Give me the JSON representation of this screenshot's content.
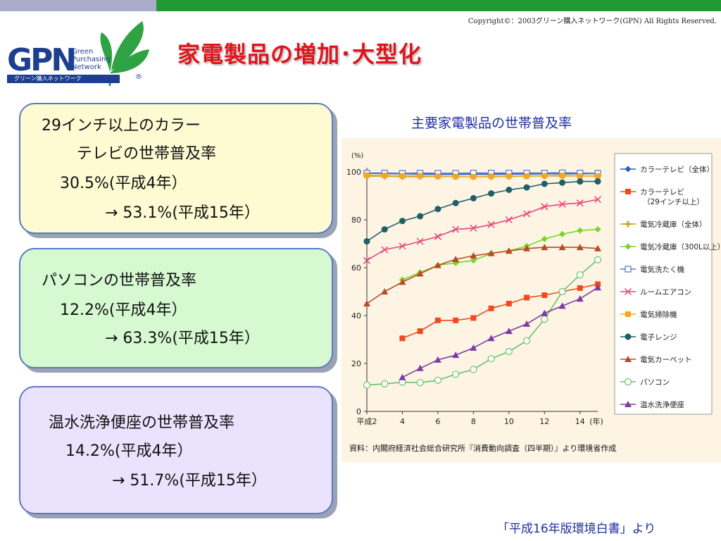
{
  "copyright": "Copyright©：2003グリーン購入ネットワーク(GPN) All Rights Reserved.",
  "logo": {
    "letters": "GPN",
    "line1": "Green",
    "line2": "Purchasing",
    "line3": "Network",
    "tagline": "グリーン購入ネットワーク",
    "registered": "®",
    "leaf_color": "#2fa244",
    "text_color": "#1d3f8f"
  },
  "title": "家電製品の増加･大型化",
  "cards": [
    {
      "lines": [
        "29インチ以上のカラー",
        "テレビの世帯普及率",
        "30.5%(平成4年）",
        "→  53.1%(平成15年）"
      ]
    },
    {
      "lines": [
        "パソコンの世帯普及率",
        "12.2%(平成4年）",
        "→  63.3%(平成15年）"
      ]
    },
    {
      "lines": [
        "温水洗浄便座の世帯普及率",
        "14.2%(平成4年）",
        "→  51.7%(平成15年）"
      ]
    }
  ],
  "chart_title": "主要家電製品の世帯普及率",
  "source": "資料：内閣府経済社会総合研究所『消費動向調査（四半期）』より環境省作成",
  "credit": "「平成16年版環境白書」より",
  "chart_data": {
    "type": "line",
    "ylabel": "(%)",
    "xlabel_unit": "(年)",
    "ylim": [
      0,
      100
    ],
    "yticks": [
      0,
      20,
      40,
      60,
      80,
      100
    ],
    "xlim": [
      2,
      15
    ],
    "xticks": [
      {
        "value": 2,
        "label": "平成2"
      },
      {
        "value": 4,
        "label": "4"
      },
      {
        "value": 6,
        "label": "6"
      },
      {
        "value": 8,
        "label": "8"
      },
      {
        "value": 10,
        "label": "10"
      },
      {
        "value": 12,
        "label": "12"
      },
      {
        "value": 14,
        "label": "14"
      }
    ],
    "legend_position": "right",
    "series": [
      {
        "name": "カラーテレビ（全体）",
        "color": "#2a5fbf",
        "marker": "diamond",
        "x": [
          2,
          3,
          4,
          5,
          6,
          7,
          8,
          9,
          10,
          11,
          12,
          13,
          14,
          15
        ],
        "y": [
          99.4,
          99.3,
          99.2,
          99.1,
          99.0,
          99.0,
          99.0,
          99.0,
          99.1,
          99.1,
          99.2,
          99.2,
          99.2,
          99.3
        ]
      },
      {
        "name": "カラーテレビ（29インチ以上）",
        "color": "#f04a1e",
        "marker": "square",
        "x": [
          4,
          5,
          6,
          7,
          8,
          9,
          10,
          11,
          12,
          13,
          14,
          15
        ],
        "y": [
          30.5,
          33.5,
          38.0,
          38.0,
          39.0,
          43.0,
          45.0,
          47.5,
          48.5,
          50.0,
          51.5,
          53.1
        ]
      },
      {
        "name": "電気冷蔵庫（全体）",
        "color": "#c8a21c",
        "marker": "plus",
        "x": [
          2,
          3,
          4,
          5,
          6,
          7,
          8,
          9,
          10,
          11,
          12,
          13,
          14,
          15
        ],
        "y": [
          98.2,
          98.2,
          98.0,
          98.0,
          98.1,
          98.0,
          98.0,
          98.0,
          98.1,
          98.2,
          98.3,
          98.3,
          98.3,
          98.2
        ]
      },
      {
        "name": "電気冷蔵庫（300L以上）",
        "color": "#7ad42a",
        "marker": "diamond",
        "x": [
          4,
          5,
          6,
          7,
          8,
          9,
          10,
          11,
          12,
          13,
          14,
          15
        ],
        "y": [
          55.0,
          58.0,
          61.0,
          62.0,
          63.0,
          66.0,
          67.0,
          69.0,
          72.0,
          74.0,
          75.5,
          76.0
        ]
      },
      {
        "name": "電気洗たく機",
        "color": "#4a78c8",
        "marker": "open-square",
        "x": [
          2,
          3,
          4,
          5,
          6,
          7,
          8,
          9,
          10,
          11,
          12,
          13,
          14,
          15
        ],
        "y": [
          99.5,
          99.5,
          99.4,
          99.5,
          99.4,
          99.4,
          99.5,
          99.5,
          99.5,
          99.5,
          99.5,
          99.6,
          99.5,
          99.4
        ]
      },
      {
        "name": "ルームエアコン",
        "color": "#e8447a",
        "marker": "cross",
        "x": [
          2,
          3,
          4,
          5,
          6,
          7,
          8,
          9,
          10,
          11,
          12,
          13,
          14,
          15
        ],
        "y": [
          63.0,
          67.5,
          69.0,
          71.0,
          73.0,
          76.0,
          76.5,
          78.0,
          80.0,
          82.5,
          85.5,
          86.5,
          87.0,
          88.5
        ]
      },
      {
        "name": "電気掃除機",
        "color": "#f5a623",
        "marker": "square",
        "x": [
          2,
          3,
          4,
          5,
          6,
          7,
          8,
          9,
          10,
          11,
          12,
          13,
          14,
          15
        ],
        "y": [
          98.6,
          98.5,
          98.3,
          98.4,
          98.2,
          98.1,
          98.0,
          98.2,
          98.3,
          98.3,
          98.4,
          98.5,
          98.3,
          98.3
        ]
      },
      {
        "name": "電子レンジ",
        "color": "#1f5f68",
        "marker": "circle",
        "x": [
          2,
          3,
          4,
          5,
          6,
          7,
          8,
          9,
          10,
          11,
          12,
          13,
          14,
          15
        ],
        "y": [
          71.0,
          76.0,
          79.5,
          81.5,
          84.5,
          87.0,
          89.0,
          91.0,
          92.5,
          93.5,
          95.0,
          95.5,
          96.0,
          96.0
        ]
      },
      {
        "name": "電気カーペット",
        "color": "#b84a26",
        "marker": "triangle",
        "x": [
          2,
          3,
          4,
          5,
          6,
          7,
          8,
          9,
          10,
          11,
          12,
          13,
          14,
          15
        ],
        "y": [
          45.0,
          50.0,
          54.0,
          57.5,
          61.0,
          63.5,
          65.0,
          66.0,
          67.0,
          68.0,
          68.5,
          68.5,
          68.5,
          68.0
        ]
      },
      {
        "name": "パソコン",
        "color": "#6ac26a",
        "marker": "open-circle",
        "x": [
          2,
          3,
          4,
          5,
          6,
          7,
          8,
          9,
          10,
          11,
          12,
          13,
          14,
          15
        ],
        "y": [
          11.0,
          11.5,
          12.2,
          12.0,
          13.0,
          15.5,
          17.5,
          22.0,
          25.0,
          29.5,
          38.5,
          50.0,
          57.0,
          63.3
        ]
      },
      {
        "name": "温水洗浄便座",
        "color": "#7d3aa6",
        "marker": "triangle",
        "x": [
          4,
          5,
          6,
          7,
          8,
          9,
          10,
          11,
          12,
          13,
          14,
          15
        ],
        "y": [
          14.2,
          18.0,
          21.5,
          23.5,
          26.5,
          30.5,
          33.5,
          36.5,
          41.0,
          44.0,
          47.0,
          51.7
        ]
      }
    ]
  }
}
